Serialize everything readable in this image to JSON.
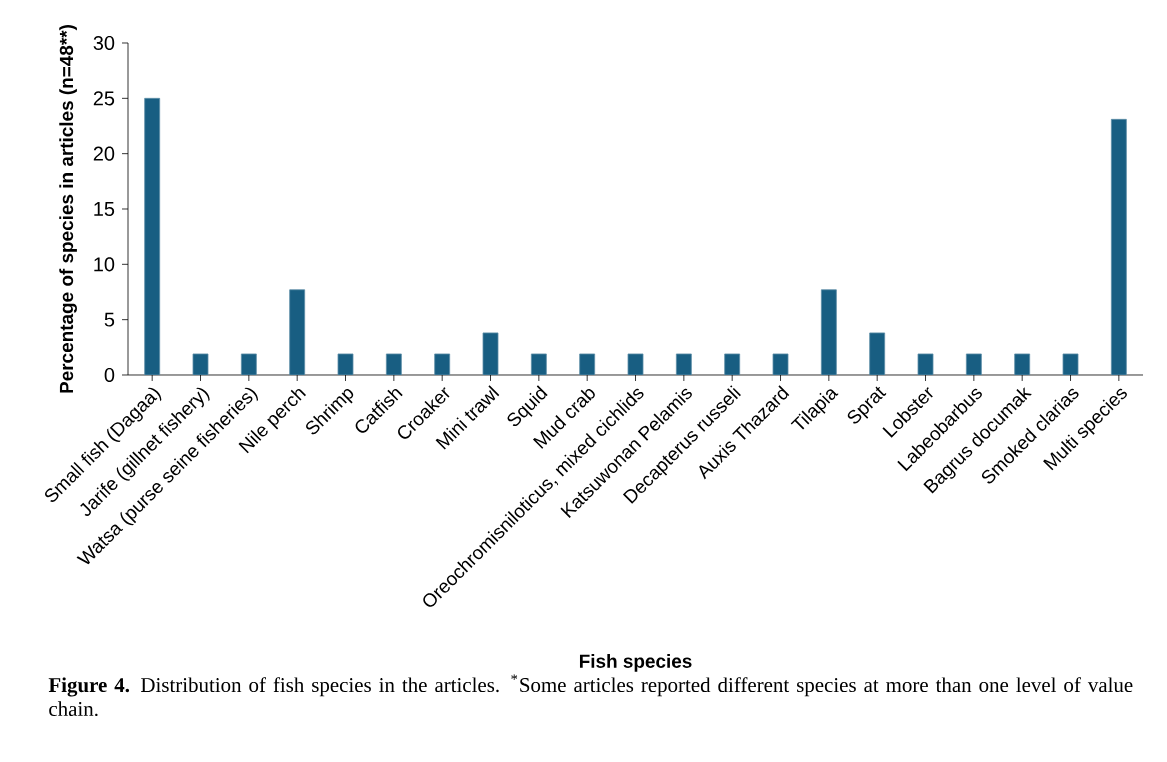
{
  "chart_data": {
    "type": "bar",
    "xlabel": "Fish species",
    "ylabel": "Percentage of species in articles (n=48**)",
    "categories": [
      "Small fish (Dagaa)",
      "Jarife (gillnet fishery)",
      "Watsa (purse seine fisheries)",
      "Nile perch",
      "Shrimp",
      "Catfish",
      "Croaker",
      "Mini trawl",
      "Squid",
      "Mud crab",
      "Oreochromisniloticus, mixed cichlids",
      "Katsuwonan Pelamis",
      "Decapterus russeli",
      "Auxis Thazard",
      "Tilapia",
      "Sprat",
      "Lobster",
      "Labeobarbus",
      "Bagrus documak",
      "Smoked clarias",
      "Multi species"
    ],
    "values": [
      25,
      1.9,
      1.9,
      7.7,
      1.9,
      1.9,
      1.9,
      3.8,
      1.9,
      1.9,
      1.9,
      1.9,
      1.9,
      1.9,
      7.7,
      3.8,
      1.9,
      1.9,
      1.9,
      1.9,
      23.1
    ],
    "color": "#185e82",
    "ylim": [
      0,
      30
    ],
    "yticks": [
      0,
      5,
      10,
      15,
      20,
      25,
      30
    ],
    "grid": false,
    "annotations": [
      "**Figure 4.** Distribution of fish species in the articles. $^{*}$Some articles reported different species at more than one level of value chain."
    ]
  }
}
